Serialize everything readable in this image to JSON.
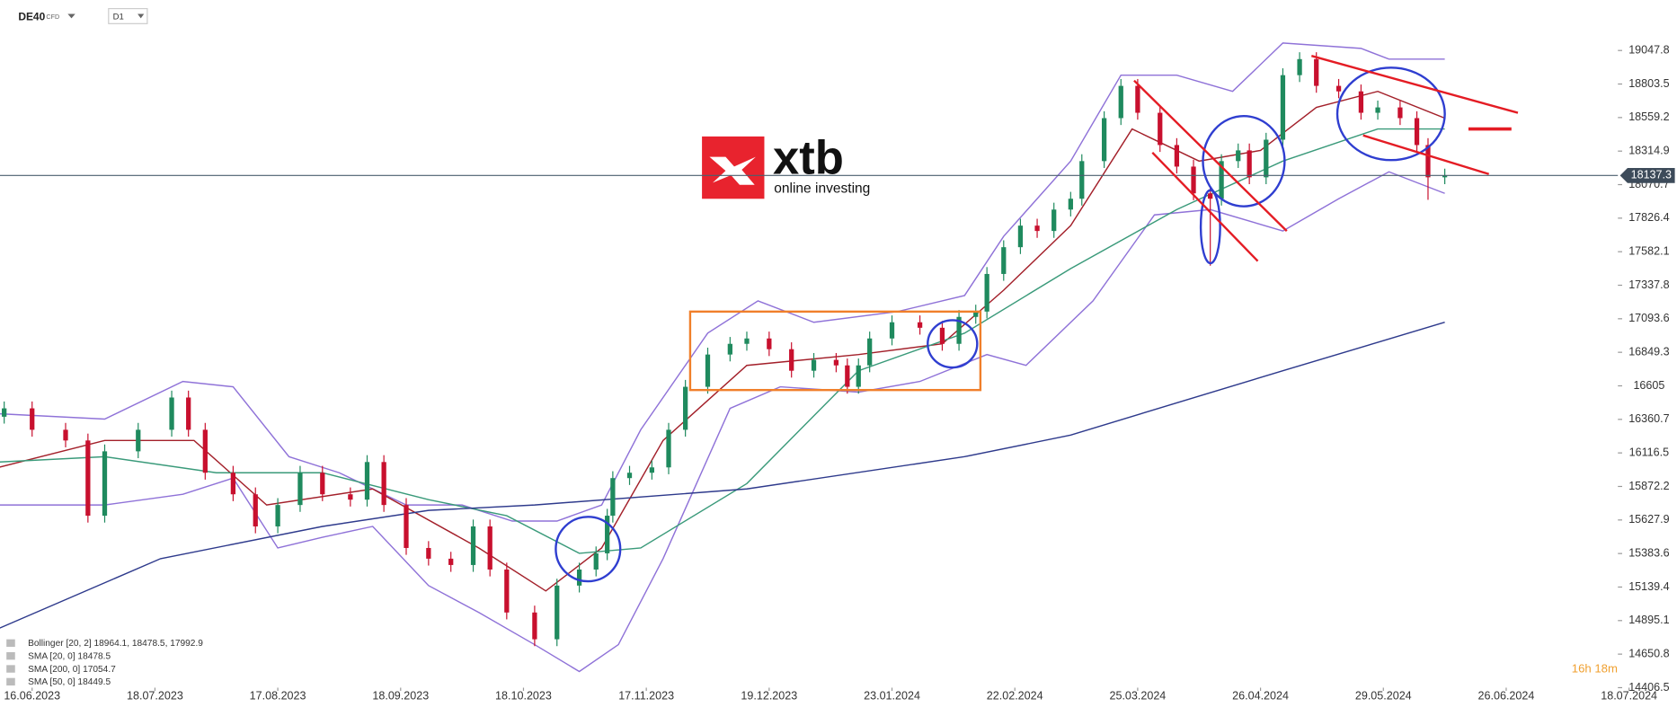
{
  "header": {
    "symbol": "DE40",
    "instrument": "CFD",
    "timeframe": "D1"
  },
  "logo": {
    "brand": "xtb",
    "tagline": "online investing"
  },
  "legend": [
    "Bollinger  [20, 2]  18964.1,  18478.5,  17992.9",
    "SMA  [20, 0]  18478.5",
    "SMA  [200, 0]  17054.7",
    "SMA  [50, 0]  18449.5"
  ],
  "timer": "16h 18m",
  "chart_data": {
    "type": "candlestick",
    "up_color": "#1f8a5e",
    "down_color": "#c8102e",
    "last_price": 18137.3,
    "xlim": [
      -5.75,
      284
    ],
    "ylim": [
      14406.5,
      19415.5
    ],
    "grid": false,
    "xticks": [
      {
        "value": 0,
        "label": "16.06.2023"
      },
      {
        "value": 22,
        "label": "18.07.2023"
      },
      {
        "value": 44,
        "label": "17.08.2023"
      },
      {
        "value": 66,
        "label": "18.09.2023"
      },
      {
        "value": 88,
        "label": "18.10.2023"
      },
      {
        "value": 110,
        "label": "17.11.2023"
      },
      {
        "value": 132,
        "label": "19.12.2023"
      },
      {
        "value": 154,
        "label": "23.01.2024"
      },
      {
        "value": 176,
        "label": "22.02.2024"
      },
      {
        "value": 198,
        "label": "25.03.2024"
      },
      {
        "value": 220,
        "label": "26.04.2024"
      },
      {
        "value": 242,
        "label": "29.05.2024"
      },
      {
        "value": 264,
        "label": "26.06.2024"
      },
      {
        "value": 286,
        "label": "18.07.2024"
      }
    ],
    "yticks": [
      19047.8,
      18803.5,
      18559.2,
      18314.9,
      18070.7,
      17826.4,
      17582.1,
      17337.8,
      17093.6,
      16849.3,
      16605.0,
      16360.7,
      16116.5,
      15872.2,
      15627.9,
      15383.6,
      15139.4,
      14895.1,
      14650.8,
      14406.5
    ],
    "x": [
      -5,
      0,
      6,
      10,
      13,
      19,
      25,
      28,
      31,
      36,
      40,
      44,
      48,
      52,
      57,
      60,
      63,
      67,
      71,
      75,
      79,
      82,
      85,
      90,
      94,
      98,
      101,
      103,
      104,
      107,
      111,
      114,
      117,
      121,
      125,
      128,
      132,
      136,
      140,
      144,
      146,
      148,
      150,
      154,
      159,
      163,
      166,
      169,
      171,
      174,
      177,
      180,
      183,
      186,
      188,
      192,
      195,
      198,
      202,
      205,
      208,
      211,
      213,
      216,
      218,
      221,
      224,
      227,
      230,
      234,
      238,
      241,
      245,
      248,
      250,
      253
    ],
    "open": [
      16380,
      16441,
      16285,
      16207,
      15659,
      16128,
      16285,
      16520,
      16285,
      15972,
      15815,
      15581,
      15737,
      15972,
      15815,
      15776,
      16050,
      15737,
      15424,
      15346,
      15300,
      15581,
      15267,
      14954,
      14759,
      15150,
      15267,
      15385,
      15659,
      15933,
      15972,
      16011,
      16285,
      16598,
      16833,
      16911,
      16950,
      16872,
      16715,
      16794,
      16754,
      16598,
      16754,
      16950,
      17068,
      17028,
      16911,
      17107,
      17146,
      17420,
      17615,
      17772,
      17733,
      17889,
      17968,
      18242,
      18555,
      18790,
      18594,
      18359,
      18202,
      18007,
      17968,
      18242,
      18320,
      18124,
      18398,
      18868,
      18985,
      18790,
      18750,
      18594,
      18633,
      18555,
      18359,
      18124
    ],
    "high": [
      16491,
      16491,
      16335,
      16257,
      16178,
      16335,
      16570,
      16570,
      16335,
      16022,
      15865,
      15787,
      16022,
      16022,
      15865,
      16100,
      16100,
      15787,
      15474,
      15396,
      15631,
      15631,
      15317,
      15004,
      15200,
      15317,
      15435,
      15709,
      15983,
      16022,
      16061,
      16335,
      16648,
      16883,
      16961,
      17000,
      17000,
      16922,
      16844,
      16844,
      16804,
      16804,
      17000,
      17118,
      17118,
      17078,
      17157,
      17196,
      17470,
      17665,
      17822,
      17822,
      17939,
      18018,
      18292,
      18605,
      18840,
      18840,
      18644,
      18409,
      18252,
      18057,
      18292,
      18370,
      18370,
      18448,
      18918,
      19035,
      19035,
      18840,
      18800,
      18683,
      18683,
      18605,
      18409,
      18187
    ],
    "low": [
      16330,
      16235,
      16157,
      15609,
      15609,
      16078,
      16235,
      16235,
      15922,
      15765,
      15531,
      15531,
      15687,
      15765,
      15726,
      15726,
      15687,
      15374,
      15296,
      15250,
      15250,
      15217,
      14904,
      14709,
      14709,
      15100,
      15217,
      15335,
      15609,
      15883,
      15922,
      15961,
      16235,
      16548,
      16783,
      16861,
      16822,
      16665,
      16665,
      16704,
      16548,
      16548,
      16704,
      16900,
      16978,
      16861,
      16861,
      17057,
      17096,
      17370,
      17565,
      17683,
      17683,
      17839,
      17918,
      18192,
      18505,
      18544,
      18309,
      18152,
      17957,
      17480,
      17918,
      18192,
      18074,
      18074,
      18348,
      18818,
      18740,
      18700,
      18544,
      18544,
      18505,
      18309,
      17960,
      18074
    ],
    "close": [
      16441,
      16285,
      16207,
      15659,
      16128,
      16285,
      16520,
      16285,
      15972,
      15815,
      15581,
      15737,
      15972,
      15815,
      15776,
      16050,
      15737,
      15424,
      15346,
      15300,
      15581,
      15267,
      14954,
      14759,
      15150,
      15267,
      15385,
      15659,
      15933,
      15972,
      16011,
      16285,
      16598,
      16833,
      16911,
      16950,
      16872,
      16715,
      16794,
      16754,
      16598,
      16754,
      16950,
      17068,
      17028,
      16911,
      17107,
      17146,
      17420,
      17615,
      17772,
      17733,
      17889,
      17968,
      18242,
      18555,
      18790,
      18594,
      18359,
      18202,
      18007,
      17968,
      18242,
      18320,
      18124,
      18398,
      18868,
      18985,
      18790,
      18750,
      18594,
      18633,
      18555,
      18359,
      18124,
      18137
    ],
    "lines": [
      {
        "color": "#8f72d8",
        "x": [
          -6,
          13,
          27,
          36,
          46,
          55,
          67,
          77,
          86,
          94,
          102,
          109,
          121,
          130,
          140,
          155,
          167,
          174,
          186,
          195,
          205,
          215,
          224,
          238,
          243,
          253
        ],
        "values": [
          16402,
          16363,
          16637,
          16598,
          16089,
          15972,
          15737,
          15737,
          15620,
          15620,
          15737,
          16285,
          16989,
          17224,
          17068,
          17146,
          17263,
          17694,
          18242,
          18868,
          18868,
          18750,
          19102,
          19063,
          18985,
          18985
        ]
      },
      {
        "color": "#8f72d8",
        "x": [
          -6,
          13,
          27,
          36,
          44,
          52,
          61,
          71,
          80,
          90,
          98,
          105,
          113,
          125,
          134,
          148,
          159,
          171,
          178,
          190,
          201,
          211,
          224,
          234,
          243,
          253
        ],
        "values": [
          15737,
          15737,
          15815,
          15933,
          15424,
          15502,
          15581,
          15150,
          14954,
          14720,
          14524,
          14720,
          15346,
          16441,
          16598,
          16559,
          16637,
          16833,
          16754,
          17224,
          17850,
          17889,
          17733,
          17968,
          18164,
          18007
        ]
      },
      {
        "color": "#a3202a",
        "x": [
          -6,
          13,
          29,
          42,
          61,
          80,
          92,
          102,
          113,
          128,
          148,
          163,
          174,
          186,
          197,
          209,
          220,
          230,
          241,
          253
        ],
        "values": [
          16011,
          16207,
          16207,
          15737,
          15854,
          15424,
          15111,
          15424,
          16207,
          16754,
          16833,
          16911,
          17302,
          17772,
          18476,
          18242,
          18320,
          18633,
          18750,
          18555
        ]
      },
      {
        "color": "#3a9a7a",
        "x": [
          -6,
          13,
          33,
          52,
          71,
          85,
          98,
          109,
          128,
          148,
          167,
          186,
          205,
          224,
          241,
          253
        ],
        "values": [
          16050,
          16089,
          15972,
          15972,
          15776,
          15659,
          15385,
          15424,
          15893,
          16715,
          16989,
          17459,
          17889,
          18242,
          18476,
          18476
        ]
      },
      {
        "color": "#2e3a8c",
        "x": [
          -6,
          23,
          52,
          71,
          90,
          128,
          167,
          186,
          205,
          224,
          253
        ],
        "values": [
          14837,
          15346,
          15581,
          15698,
          15737,
          15854,
          16089,
          16246,
          16481,
          16715,
          17068
        ]
      }
    ]
  }
}
